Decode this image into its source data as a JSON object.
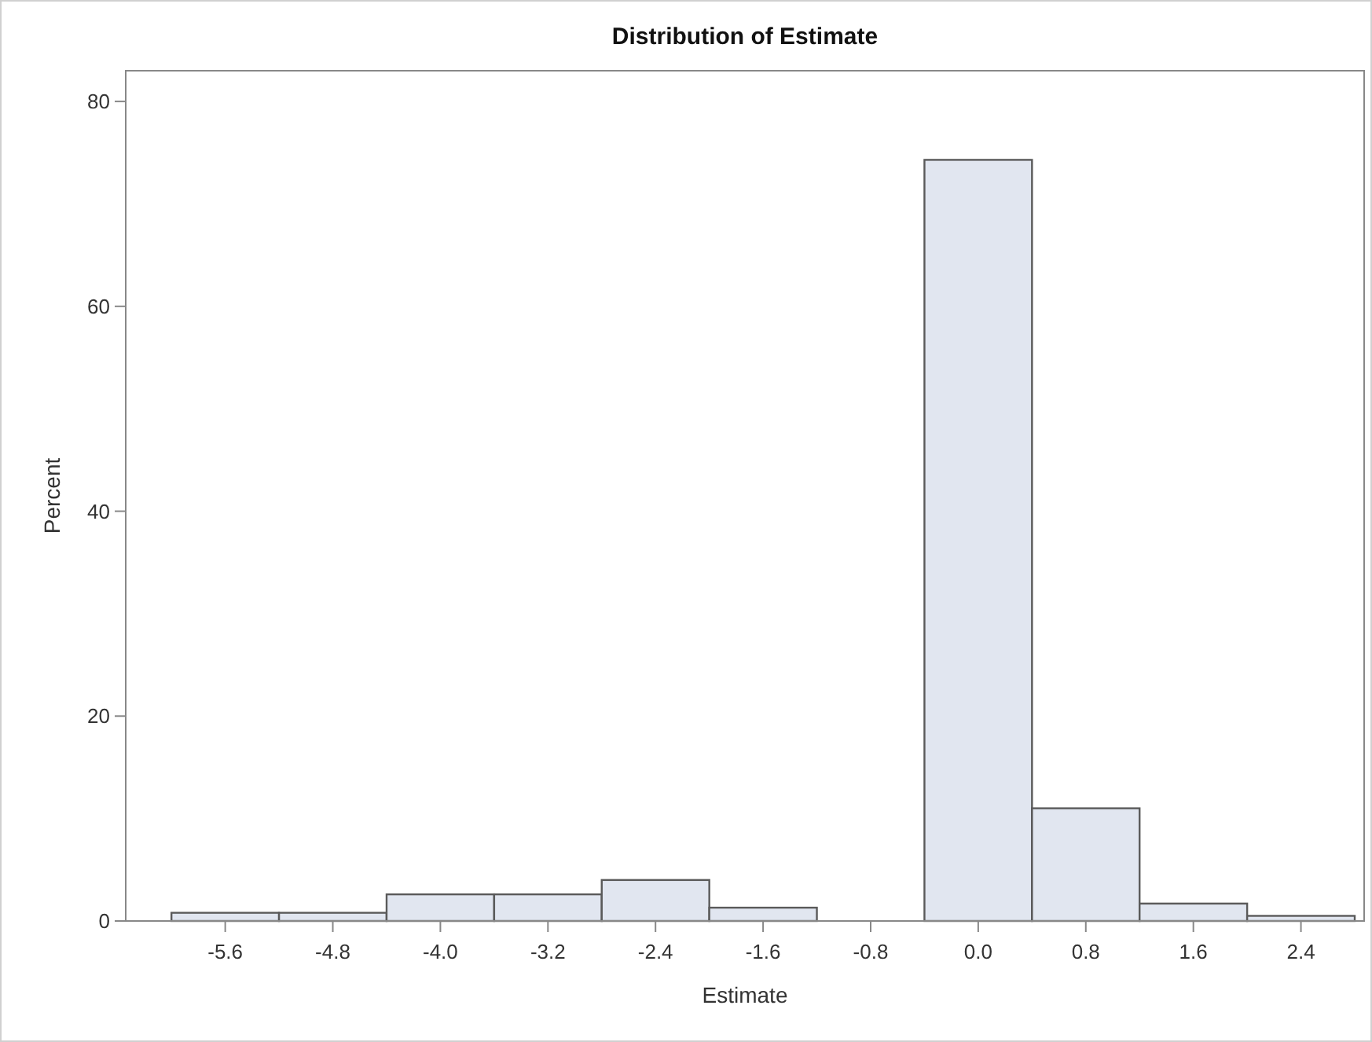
{
  "chart_data": {
    "type": "histogram",
    "title": "Distribution of Estimate",
    "xlabel": "Estimate",
    "ylabel": "Percent",
    "bins": [
      -6.0,
      -5.2,
      -4.4,
      -3.6,
      -2.8,
      -2.0,
      -1.2,
      -0.4,
      0.4,
      1.2,
      2.0,
      2.8
    ],
    "values": [
      0.8,
      0.8,
      2.6,
      2.6,
      4.0,
      1.3,
      0,
      74.3,
      11.0,
      1.7,
      0.5
    ],
    "color": "#e1e6f0",
    "xlim": [
      -6.34,
      2.87
    ],
    "xticks": [
      {
        "value": -5.6,
        "label": "-5.6"
      },
      {
        "value": -4.8,
        "label": "-4.8"
      },
      {
        "value": -4.0,
        "label": "-4.0"
      },
      {
        "value": -3.2,
        "label": "-3.2"
      },
      {
        "value": -2.4,
        "label": "-2.4"
      },
      {
        "value": -1.6,
        "label": "-1.6"
      },
      {
        "value": -0.8,
        "label": "-0.8"
      },
      {
        "value": 0,
        "label": "0.0"
      },
      {
        "value": 0.8,
        "label": "0.8"
      },
      {
        "value": 1.6,
        "label": "1.6"
      },
      {
        "value": 2.4,
        "label": "2.4"
      }
    ],
    "ylim": [
      0,
      83
    ],
    "yticks": [
      0,
      20,
      40,
      60,
      80
    ],
    "grid": false
  }
}
